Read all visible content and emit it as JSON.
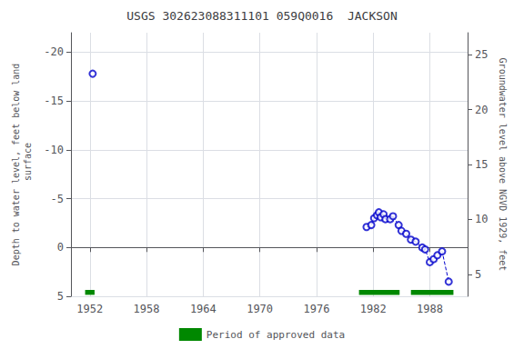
{
  "chart_data": {
    "type": "scatter",
    "title": "USGS 302623088311101 059Q0016  JACKSON",
    "ylabel": "Depth to water level, feet below land\n surface",
    "y2label": "Groundwater level above NGVD 1929, feet",
    "xlim": [
      1950,
      1992
    ],
    "xticks": [
      1952,
      1958,
      1964,
      1970,
      1976,
      1982,
      1988
    ],
    "ylim": [
      5,
      -22
    ],
    "yticks": [
      -20,
      -15,
      -10,
      -5,
      0,
      5
    ],
    "y2lim": [
      3,
      27
    ],
    "y2ticks": [
      5,
      10,
      15,
      20,
      25
    ],
    "grid": true,
    "legend": "bottom",
    "series": [
      {
        "type": "scatter",
        "marker": "open_circle",
        "color": "#0000cc",
        "x": [
          1952.3,
          1981.3,
          1981.8,
          1982.1,
          1982.4,
          1982.6,
          1982.8,
          1983.1,
          1983.3,
          1983.8,
          1984.1,
          1984.7,
          1985.0,
          1985.5,
          1986.0,
          1986.5,
          1987.2,
          1987.5,
          1988.0,
          1988.4,
          1988.8,
          1989.3,
          1990.0
        ],
        "values": [
          -17.8,
          -2.1,
          -2.3,
          -3.0,
          -3.3,
          -3.6,
          -3.1,
          -3.4,
          -2.9,
          -2.9,
          -3.2,
          -2.3,
          -1.7,
          -1.4,
          -0.8,
          -0.6,
          0.0,
          0.2,
          1.5,
          1.2,
          0.8,
          0.4,
          3.5
        ]
      },
      {
        "type": "line",
        "line_style": "dashed",
        "color": "#0000cc",
        "x": [
          1981.3,
          1981.8,
          1982.1,
          1982.4,
          1982.6,
          1982.8,
          1983.1,
          1983.3,
          1983.8,
          1984.1,
          1984.7,
          1985.0,
          1985.5,
          1986.0,
          1986.5,
          1987.2,
          1987.5,
          1988.0,
          1988.4,
          1988.8,
          1989.3,
          1990.0
        ],
        "values": [
          -2.1,
          -2.3,
          -3.0,
          -3.3,
          -3.6,
          -3.1,
          -3.4,
          -2.9,
          -2.9,
          -3.2,
          -2.3,
          -1.7,
          -1.4,
          -0.8,
          -0.6,
          0.0,
          0.2,
          1.5,
          1.2,
          0.8,
          0.4,
          3.5
        ]
      }
    ],
    "approved_periods": {
      "name": "Period of approved data",
      "color": "#008800",
      "x_start": [
        1951.5,
        1980.5,
        1986.0
      ],
      "x_end": [
        1952.5,
        1984.8,
        1990.5
      ],
      "y": 4.6,
      "height": 0.5
    }
  }
}
